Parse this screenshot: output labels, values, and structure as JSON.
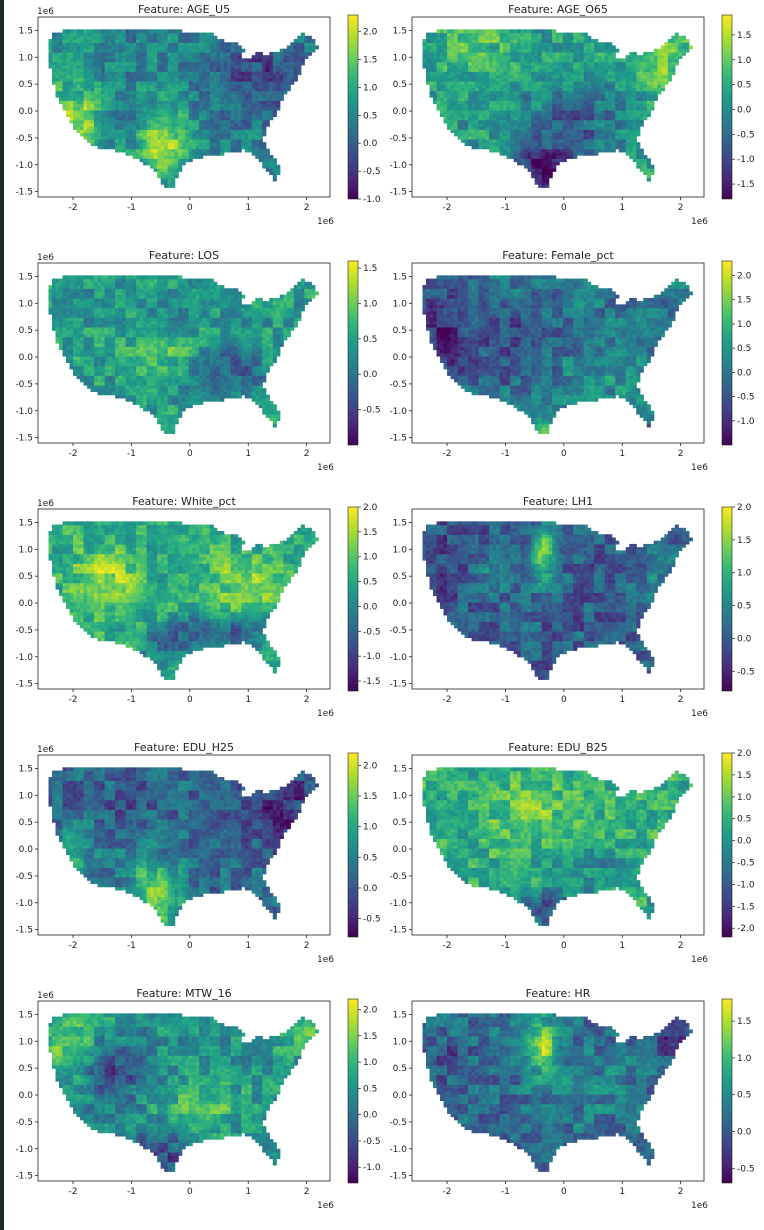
{
  "figure": {
    "panels": [
      {
        "title": "Feature: AGE_U5",
        "ylabel_exp": "1e6",
        "xlabel_exp": "1e6",
        "colorbar": {
          "ticks": [
            "2.0",
            "1.5",
            "1.0",
            "0.5",
            "0.0",
            "-0.5",
            "-1.0"
          ],
          "min": -1.0,
          "max": 2.3
        },
        "pattern": "age_u5"
      },
      {
        "title": "Feature: AGE_O65",
        "ylabel_exp": "",
        "xlabel_exp": "1e6",
        "colorbar": {
          "ticks": [
            "1.5",
            "1.0",
            "0.5",
            "0.0",
            "-0.5",
            "-1.0",
            "-1.5"
          ],
          "min": -1.8,
          "max": 1.9
        },
        "pattern": "age_o65"
      },
      {
        "title": "Feature: LOS",
        "ylabel_exp": "1e6",
        "xlabel_exp": "1e6",
        "colorbar": {
          "ticks": [
            "1.5",
            "1.0",
            "0.5",
            "0.0",
            "-0.5"
          ],
          "min": -1.0,
          "max": 1.6
        },
        "pattern": "los"
      },
      {
        "title": "Feature: Female_pct",
        "ylabel_exp": "",
        "xlabel_exp": "1e6",
        "colorbar": {
          "ticks": [
            "2.0",
            "1.5",
            "1.0",
            "0.5",
            "0.0",
            "-0.5",
            "-1.0"
          ],
          "min": -1.5,
          "max": 2.3
        },
        "pattern": "female"
      },
      {
        "title": "Feature: White_pct",
        "ylabel_exp": "1e6",
        "xlabel_exp": "1e6",
        "colorbar": {
          "ticks": [
            "2.0",
            "1.5",
            "1.0",
            "0.5",
            "0.0",
            "-0.5",
            "-1.0",
            "-1.5"
          ],
          "min": -1.7,
          "max": 2.0
        },
        "pattern": "white"
      },
      {
        "title": "Feature: LH1",
        "ylabel_exp": "",
        "xlabel_exp": "1e6",
        "colorbar": {
          "ticks": [
            "2.0",
            "1.5",
            "1.0",
            "0.5",
            "0.0",
            "-0.5"
          ],
          "min": -0.8,
          "max": 2.0
        },
        "pattern": "lh1"
      },
      {
        "title": "Feature: EDU_H25",
        "ylabel_exp": "1e6",
        "xlabel_exp": "1e6",
        "colorbar": {
          "ticks": [
            "2.0",
            "1.5",
            "1.0",
            "0.5",
            "0.0",
            "-0.5"
          ],
          "min": -0.8,
          "max": 2.2
        },
        "pattern": "edu_h25"
      },
      {
        "title": "Feature: EDU_B25",
        "ylabel_exp": "",
        "xlabel_exp": "1e6",
        "colorbar": {
          "ticks": [
            "2.0",
            "1.5",
            "1.0",
            "0.5",
            "0.0",
            "-0.5",
            "-1.0",
            "-1.5",
            "-2.0"
          ],
          "min": -2.2,
          "max": 2.0
        },
        "pattern": "edu_b25"
      },
      {
        "title": "Feature: MTW_16",
        "ylabel_exp": "1e6",
        "xlabel_exp": "1e6",
        "colorbar": {
          "ticks": [
            "2.0",
            "1.5",
            "1.0",
            "0.5",
            "0.0",
            "-0.5",
            "-1.0"
          ],
          "min": -1.3,
          "max": 2.2
        },
        "pattern": "mtw_16"
      },
      {
        "title": "Feature: HR",
        "ylabel_exp": "",
        "xlabel_exp": "1e6",
        "colorbar": {
          "ticks": [
            "1.5",
            "1.0",
            "0.5",
            "0.0",
            "-0.5"
          ],
          "min": -0.7,
          "max": 1.8
        },
        "pattern": "hr"
      }
    ],
    "axes": {
      "xticks": [
        "-2",
        "-1",
        "0",
        "1",
        "2"
      ],
      "xtick_values": [
        -2,
        -1,
        0,
        1,
        2
      ],
      "yticks": [
        "1.5",
        "1.0",
        "0.5",
        "0.0",
        "-0.5",
        "-1.0",
        "-1.5"
      ],
      "ytick_values": [
        1.5,
        1.0,
        0.5,
        0.0,
        -0.5,
        -1.0,
        -1.5
      ],
      "xlim": [
        -2.6,
        2.4
      ],
      "ylim": [
        -1.6,
        1.75
      ]
    }
  },
  "colors": {
    "viridis": [
      "#440154",
      "#482878",
      "#3e4989",
      "#31688e",
      "#26828e",
      "#1f9e89",
      "#35b779",
      "#6ece58",
      "#b5de2b",
      "#fde725"
    ],
    "axis": "#222222",
    "background": "#ffffff"
  }
}
